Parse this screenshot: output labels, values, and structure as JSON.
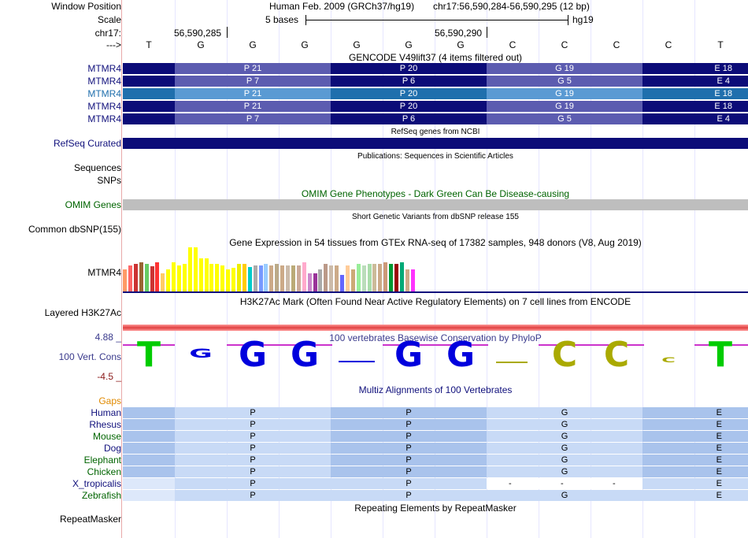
{
  "labels": {
    "window_position": "Window Position",
    "scale": "Scale",
    "chrom": "chr17:",
    "arrow": "--->",
    "mtmr4_rows": [
      "MTMR4",
      "MTMR4",
      "MTMR4",
      "MTMR4",
      "MTMR4"
    ],
    "refseq": "RefSeq Curated",
    "sequences": "Sequences",
    "snps": "SNPs",
    "omim": "OMIM Genes",
    "common_dbsnp": "Common dbSNP(155)",
    "gtex_gene": "MTMR4",
    "layered": "Layered H3K27Ac",
    "cons_max": "4.88 _",
    "cons_label": "100 Vert. Cons",
    "cons_min": "-4.5 _",
    "gaps": "Gaps",
    "species": [
      "Human",
      "Rhesus",
      "Mouse",
      "Dog",
      "Elephant",
      "Chicken",
      "X_tropicalis",
      "Zebrafish"
    ],
    "repeatmasker": "RepeatMasker"
  },
  "header": {
    "assembly": "Human Feb. 2009 (GRCh37/hg19)",
    "position": "chr17:56,590,284-56,590,295 (12 bp)",
    "scale_text": "5 bases",
    "scale_db": "hg19",
    "coord1": "56,590,285",
    "coord2": "56,590,290"
  },
  "bases": [
    "T",
    "G",
    "G",
    "G",
    "G",
    "G",
    "G",
    "C",
    "C",
    "C",
    "C",
    "T"
  ],
  "tracks": {
    "gencode_title": "GENCODE V49lift37 (4 items filtered out)",
    "refseq_title": "RefSeq genes from NCBI",
    "pubs_title": "Publications: Sequences in Scientific Articles",
    "omim_title": "OMIM Gene Phenotypes - Dark Green Can Be Disease-causing",
    "dbsnp_title": "Short Genetic Variants from dbSNP release 155",
    "gtex_title": "Gene Expression in 54 tissues from GTEx RNA-seq of 17382 samples, 948 donors (V8, Aug 2019)",
    "h3k_title": "H3K27Ac Mark (Often Found Near Active Regulatory Elements) on 7 cell lines from ENCODE",
    "phylop_title": "100 vertebrates Basewise Conservation by PhyloP",
    "multiz_title": "Multiz Alignments of 100 Vertebrates",
    "repeat_title": "Repeating Elements by RepeatMasker"
  },
  "gencode_rows": [
    [
      "P 21",
      "P 20",
      "G 19",
      "E 18"
    ],
    [
      "P 7",
      "P 6",
      "G 5",
      "E 4"
    ],
    [
      "P 21",
      "P 20",
      "G 19",
      "E 18"
    ],
    [
      "P 21",
      "P 20",
      "G 19",
      "E 18"
    ],
    [
      "P 7",
      "P 6",
      "G 5",
      "E 4"
    ]
  ],
  "multiz_aa": [
    "P",
    "P",
    "G",
    "E"
  ],
  "multiz_dash": [
    "-",
    "-",
    "-"
  ],
  "colors": {
    "gene_dark": "#0c0c78",
    "gene_mid": "#5c5cb0",
    "gene_sel_dark": "#1f6fad",
    "gene_sel_mid": "#5a9ad3",
    "omim_gray": "#bebebe",
    "green_label": "#006400",
    "blue_label": "#10107c",
    "orange": "#e08a00"
  },
  "gtex_values": [
    30,
    35,
    38,
    40,
    38,
    34,
    40,
    25,
    30,
    40,
    35,
    38,
    60,
    60,
    45,
    45,
    38,
    38,
    35,
    30,
    32,
    38,
    38,
    33,
    35,
    35,
    38,
    35,
    38,
    35,
    35,
    35,
    35,
    40,
    25,
    25,
    30,
    38,
    35,
    35,
    22,
    35,
    30,
    38,
    35,
    38,
    38,
    38,
    40,
    38,
    38,
    40,
    30,
    30
  ],
  "gtex_colors": [
    "#ff9966",
    "#ff6666",
    "#cc3333",
    "#996633",
    "#66cc66",
    "#cc3333",
    "#ff3333",
    "#ffcc66",
    "#ffff00",
    "#ffff00",
    "#ffff00",
    "#ffff00",
    "#ffff00",
    "#ffff00",
    "#ffff00",
    "#ffff00",
    "#ffff00",
    "#ffff00",
    "#ffff00",
    "#ffff00",
    "#ffff00",
    "#eeee00",
    "#ffcc00",
    "#00cccc",
    "#aaaaaa",
    "#7799ff",
    "#99ccff",
    "#ccaa88",
    "#bbaa88",
    "#ccaa88",
    "#ccbbaa",
    "#bbaa77",
    "#ccaa99",
    "#ffaacc",
    "#cc88cc",
    "#993399",
    "#aaaaaa",
    "#bb9988",
    "#ccbbaa",
    "#ccaa88",
    "#6666ff",
    "#ffcc99",
    "#ccaa77",
    "#99ee99",
    "#bbddbb",
    "#aaddaa",
    "#ccbb99",
    "#ccaa88",
    "#cc9977",
    "#009933",
    "#990000",
    "#00aa77",
    "#ccaa88",
    "#ff33ff"
  ]
}
